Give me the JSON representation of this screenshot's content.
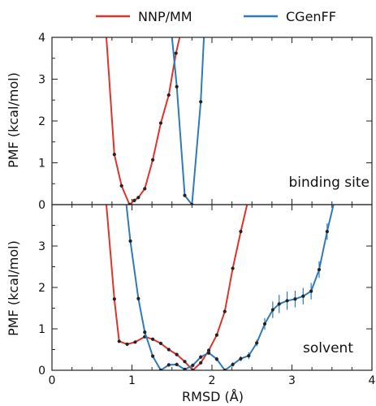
{
  "chart_data": {
    "type": "line",
    "legend": {
      "placement": "top-center",
      "entries": [
        {
          "name": "NNP/MM",
          "color": "#e0332b"
        },
        {
          "name": "CGenFF",
          "color": "#2f7ab9"
        }
      ]
    },
    "xlabel": "RMSD (Å)",
    "xlim": [
      0,
      4
    ],
    "x_ticks": [
      "0",
      "1",
      "2",
      "3",
      "4"
    ],
    "panels": [
      {
        "label": "binding site",
        "ylabel": "PMF (kcal/mol)",
        "ylim": [
          0,
          4
        ],
        "y_ticks": [
          "0",
          "1",
          "2",
          "3",
          "4"
        ],
        "series": [
          {
            "name": "NNP/MM",
            "color": "#e0332b",
            "x": [
              0.68,
              0.78,
              0.87,
              0.97,
              1.03,
              1.08,
              1.16,
              1.26,
              1.36,
              1.46,
              1.55,
              1.62
            ],
            "y": [
              4.0,
              1.2,
              0.45,
              0.0,
              0.1,
              0.17,
              0.38,
              1.07,
              1.95,
              2.62,
              3.62,
              4.2
            ],
            "err": [
              0,
              0,
              0,
              0,
              0,
              0,
              0,
              0,
              0,
              0,
              0,
              0
            ]
          },
          {
            "name": "CGenFF",
            "color": "#2f7ab9",
            "x": [
              1.5,
              1.56,
              1.66,
              1.75,
              1.86,
              1.9
            ],
            "y": [
              4.0,
              2.82,
              0.22,
              0.0,
              2.46,
              4.0
            ],
            "err": [
              0,
              0,
              0,
              0,
              0,
              0
            ]
          }
        ]
      },
      {
        "label": "solvent",
        "ylabel": "PMF (kcal/mol)",
        "ylim": [
          0,
          4
        ],
        "y_ticks": [
          "0",
          "1",
          "2",
          "3"
        ],
        "series": [
          {
            "name": "NNP/MM",
            "color": "#e0332b",
            "x": [
              0.68,
              0.78,
              0.84,
              0.94,
              1.04,
              1.16,
              1.26,
              1.36,
              1.46,
              1.56,
              1.66,
              1.76,
              1.86,
              1.96,
              2.06,
              2.16,
              2.26,
              2.36,
              2.44
            ],
            "y": [
              4.0,
              1.72,
              0.7,
              0.63,
              0.68,
              0.81,
              0.75,
              0.65,
              0.5,
              0.38,
              0.21,
              0.0,
              0.18,
              0.48,
              0.85,
              1.42,
              2.46,
              3.35,
              4.0
            ],
            "err": [
              0,
              0,
              0,
              0,
              0,
              0,
              0,
              0,
              0,
              0,
              0,
              0,
              0,
              0,
              0,
              0,
              0,
              0,
              0
            ]
          },
          {
            "name": "CGenFF",
            "color": "#2f7ab9",
            "x": [
              0.93,
              0.98,
              1.08,
              1.16,
              1.26,
              1.36,
              1.46,
              1.56,
              1.66,
              1.76,
              1.86,
              1.96,
              2.06,
              2.16,
              2.26,
              2.36,
              2.46,
              2.56,
              2.66,
              2.76,
              2.84,
              2.94,
              3.04,
              3.14,
              3.24,
              3.34,
              3.44,
              3.52
            ],
            "y": [
              4.0,
              3.12,
              1.73,
              0.92,
              0.34,
              0.0,
              0.13,
              0.14,
              0.02,
              0.12,
              0.32,
              0.42,
              0.27,
              0.0,
              0.14,
              0.28,
              0.35,
              0.66,
              1.12,
              1.46,
              1.6,
              1.68,
              1.72,
              1.79,
              1.91,
              2.43,
              3.35,
              4.0
            ],
            "err": [
              0,
              0,
              0,
              0.06,
              0.04,
              0,
              0.04,
              0.04,
              0,
              0.03,
              0.05,
              0.05,
              0.05,
              0,
              0.05,
              0.06,
              0.08,
              0.08,
              0.14,
              0.2,
              0.22,
              0.22,
              0.2,
              0.2,
              0.2,
              0.2,
              0.2,
              0
            ]
          }
        ]
      }
    ]
  }
}
